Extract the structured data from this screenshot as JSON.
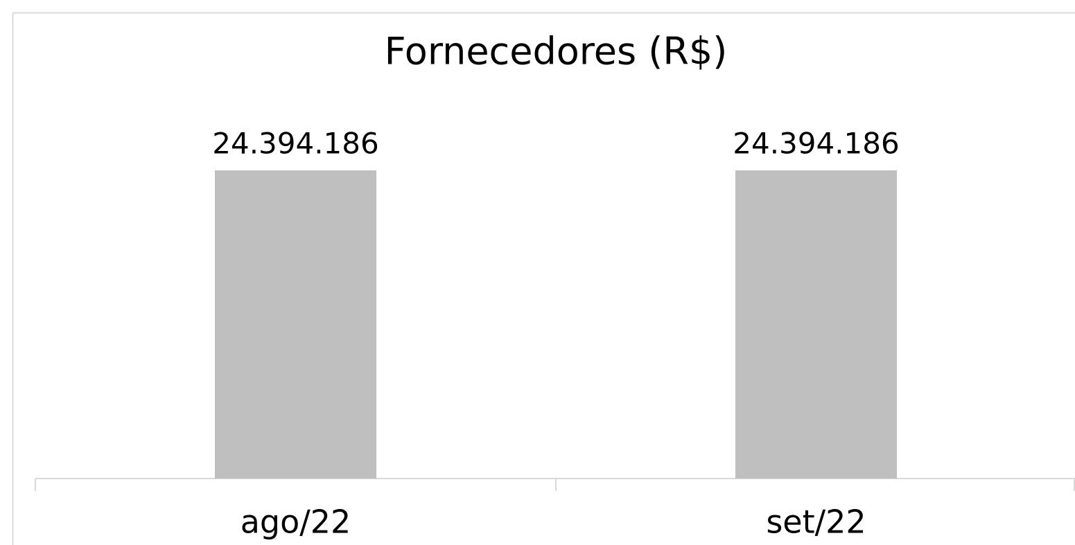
{
  "chart_data": {
    "type": "bar",
    "title": "Fornecedores (R$)",
    "categories": [
      "ago/22",
      "set/22"
    ],
    "values": [
      24394186,
      24394186
    ],
    "value_labels": [
      "24.394.186",
      "24.394.186"
    ],
    "color": "#bfbfbf"
  }
}
